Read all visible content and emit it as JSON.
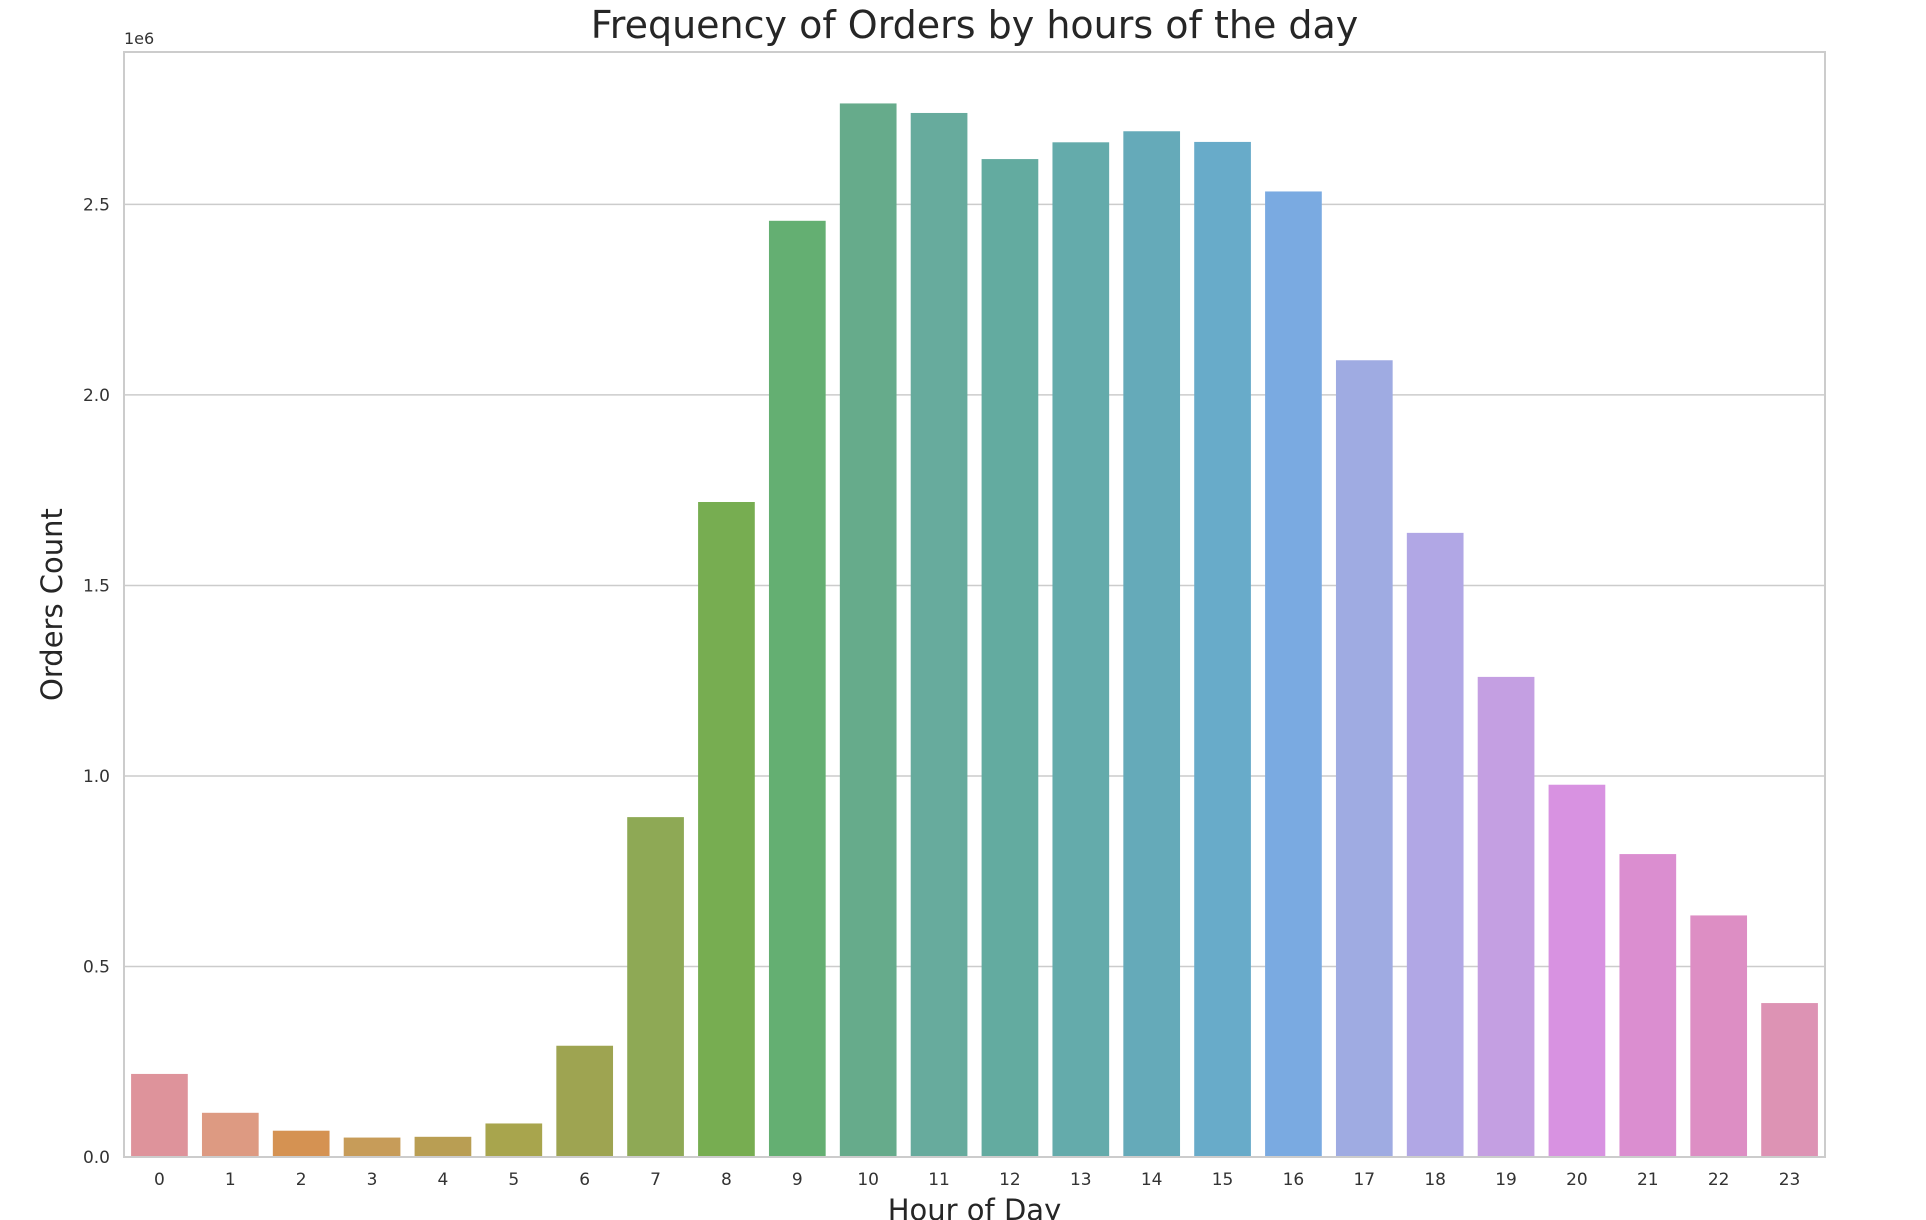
{
  "chart_data": {
    "type": "bar",
    "title": "Frequency of Orders by hours of the day",
    "xlabel": "Hour of Day",
    "ylabel": "Orders Count",
    "y_offset_label": "1e6",
    "categories": [
      "0",
      "1",
      "2",
      "3",
      "4",
      "5",
      "6",
      "7",
      "8",
      "9",
      "10",
      "11",
      "12",
      "13",
      "14",
      "15",
      "16",
      "17",
      "18",
      "19",
      "20",
      "21",
      "22",
      "23"
    ],
    "values": [
      218000,
      116000,
      69000,
      51000,
      53000,
      88000,
      292000,
      892000,
      1719000,
      2457000,
      2765000,
      2740000,
      2619000,
      2663000,
      2692000,
      2664000,
      2534000,
      2091000,
      1638000,
      1260000,
      977000,
      795000,
      634000,
      404000
    ],
    "ylim": [
      0,
      2900000
    ],
    "yticks": [
      0,
      500000,
      1000000,
      1500000,
      2000000,
      2500000
    ],
    "ytick_labels": [
      "0.0",
      "0.5",
      "1.0",
      "1.5",
      "2.0",
      "2.5"
    ],
    "grid": "horizontal",
    "colors": [
      "#de939b",
      "#dd9a82",
      "#d59252",
      "#c79c59",
      "#b99e53",
      "#a8a54d",
      "#9ea451",
      "#8ea955",
      "#77ad51",
      "#64af72",
      "#66ab8b",
      "#67ab9d",
      "#63aba0",
      "#64abab",
      "#65aab9",
      "#68abc9",
      "#7aaae1",
      "#9fabe2",
      "#b1a7e5",
      "#c49fe2",
      "#d892e1",
      "#db8ed0",
      "#dd8ec4",
      "#dd93b4"
    ]
  }
}
